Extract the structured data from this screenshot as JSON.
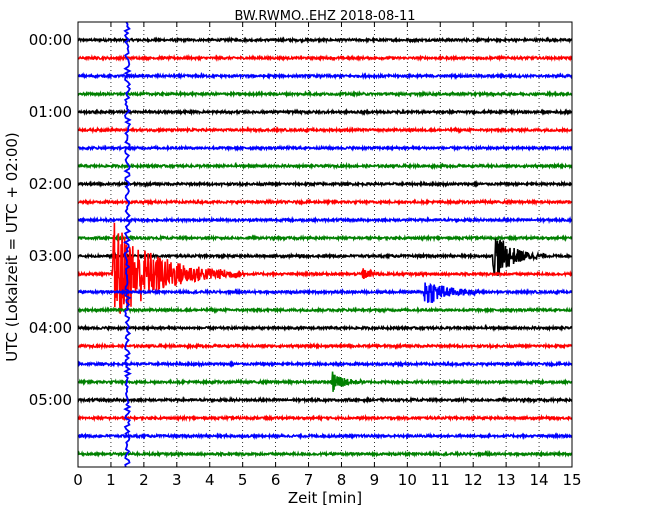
{
  "chart_data": {
    "type": "line",
    "title": "BW.RWMO..EHZ 2018-08-11",
    "xlabel": "Zeit  [min]",
    "ylabel": "UTC (Lokalzeit = UTC + 02:00)",
    "xlim": [
      0,
      15
    ],
    "x_ticks": [
      "0",
      "1",
      "2",
      "3",
      "4",
      "5",
      "6",
      "7",
      "8",
      "9",
      "10",
      "11",
      "12",
      "13",
      "14",
      "15"
    ],
    "y_ticks": [
      "00:00",
      "01:00",
      "02:00",
      "03:00",
      "04:00",
      "05:00"
    ],
    "grid": "vertical dotted at each minute",
    "trace_interval_minutes": 15,
    "trace_count": 24,
    "trace_colors": [
      "#000000",
      "#ff0000",
      "#0000ff",
      "#008000"
    ],
    "events": [
      {
        "trace_start": "03:15",
        "time_min": 1.05,
        "amplitude": 3.0,
        "duration_min": 4.0,
        "color": "#0000ff",
        "note": "large event, signal clipped over several traces"
      },
      {
        "trace_start": "03:15",
        "time_min": 8.6,
        "amplitude": 0.35,
        "duration_min": 0.8,
        "color": "#0000ff"
      },
      {
        "trace_start": "03:30",
        "time_min": 10.5,
        "amplitude": 0.9,
        "duration_min": 1.8,
        "color": "#008000"
      },
      {
        "trace_start": "03:00",
        "time_min": 12.6,
        "amplitude": 1.5,
        "duration_min": 1.6,
        "color": "#ff0000"
      },
      {
        "trace_start": "04:45",
        "time_min": 7.7,
        "amplitude": 0.7,
        "duration_min": 1.0,
        "color": "#008000"
      }
    ]
  }
}
